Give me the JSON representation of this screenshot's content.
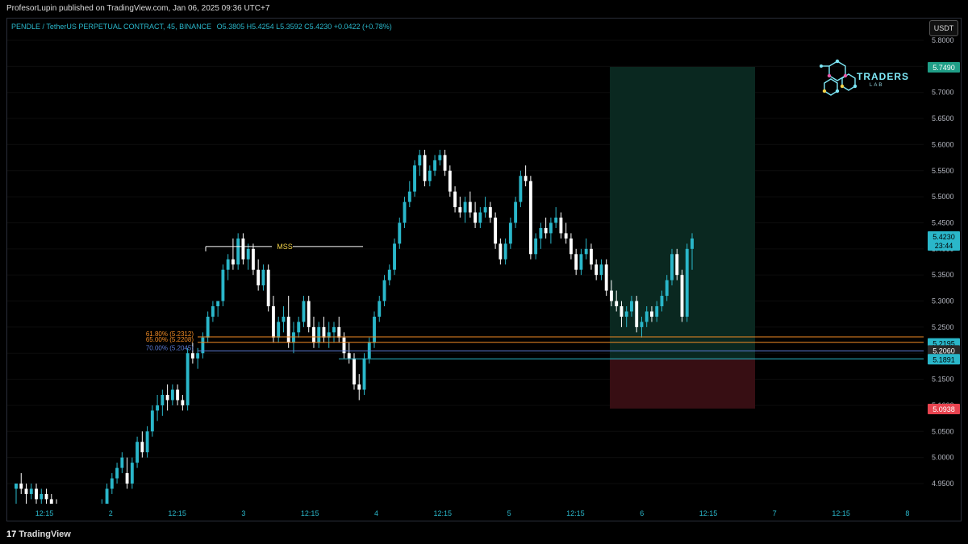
{
  "header": {
    "publish_line": "ProfesorLupin published on TradingView.com, Jan 06, 2025 09:36 UTC+7"
  },
  "symbol": {
    "title": "PENDLE / TetherUS PERPETUAL CONTRACT, 45, BINANCE",
    "ohlc": "O5.3805  H5.4254  L5.3592  C5.4230  +0.0422 (+0.78%)"
  },
  "currency_button": "USDT",
  "brand": {
    "name": "TRADERS",
    "sub": "LAB"
  },
  "footer": {
    "logo_text": "TradingView",
    "logo_mark": "17"
  },
  "colors": {
    "background": "#000000",
    "grid": "#0d0d0d",
    "candle_up": "#2ab7ca",
    "candle_down": "#ffffff",
    "target_zone": "#0b2a22",
    "stop_zone": "#3a0f14",
    "fib_618": "#f08a24",
    "fib_65": "#f08a24",
    "fib_70": "#5b7bd5",
    "entry_line": "#2ab7ca",
    "price_axis_text": "#b2b5be",
    "time_axis_text": "#2ab7ca"
  },
  "chart_data": {
    "type": "candlestick",
    "title": "PENDLE / TetherUS PERPETUAL CONTRACT, 45, BINANCE",
    "ylim": [
      4.905,
      5.822
    ],
    "y_ticks": [
      "5.8000",
      "5.7500",
      "5.7000",
      "5.6500",
      "5.6000",
      "5.5500",
      "5.5000",
      "5.4500",
      "5.4000",
      "5.3500",
      "5.3000",
      "5.2500",
      "5.2000",
      "5.1500",
      "5.1000",
      "5.0500",
      "5.0000",
      "4.9500"
    ],
    "x_ticks": [
      "12:15",
      "2",
      "12:15",
      "3",
      "12:15",
      "4",
      "12:15",
      "5",
      "12:15",
      "6",
      "12:15",
      "7",
      "12:15",
      "8"
    ],
    "candles": [
      [
        4.94,
        4.95,
        4.89,
        4.95
      ],
      [
        4.95,
        4.97,
        4.93,
        4.94
      ],
      [
        4.94,
        4.95,
        4.91,
        4.93
      ],
      [
        4.93,
        4.95,
        4.92,
        4.94
      ],
      [
        4.94,
        4.95,
        4.91,
        4.92
      ],
      [
        4.92,
        4.94,
        4.9,
        4.93
      ],
      [
        4.93,
        4.94,
        4.91,
        4.92
      ],
      [
        4.92,
        4.93,
        4.9,
        4.91
      ],
      [
        4.91,
        4.92,
        4.89,
        4.9
      ],
      [
        4.9,
        4.91,
        4.88,
        4.89
      ],
      [
        4.89,
        4.9,
        4.87,
        4.88
      ],
      [
        4.88,
        4.89,
        4.86,
        4.87
      ],
      [
        4.87,
        4.88,
        4.85,
        4.86
      ],
      [
        4.86,
        4.88,
        4.85,
        4.87
      ],
      [
        4.87,
        4.88,
        4.85,
        4.86
      ],
      [
        4.86,
        4.88,
        4.85,
        4.87
      ],
      [
        4.87,
        4.9,
        4.86,
        4.89
      ],
      [
        4.89,
        4.92,
        4.88,
        4.91
      ],
      [
        4.91,
        4.95,
        4.9,
        4.94
      ],
      [
        4.94,
        4.97,
        4.93,
        4.96
      ],
      [
        4.96,
        4.99,
        4.95,
        4.98
      ],
      [
        4.98,
        5.01,
        4.97,
        5.0
      ],
      [
        4.97,
        5.0,
        4.94,
        4.95
      ],
      [
        4.95,
        5.0,
        4.94,
        4.99
      ],
      [
        4.99,
        5.04,
        4.98,
        5.03
      ],
      [
        5.03,
        5.05,
        5.0,
        5.01
      ],
      [
        5.01,
        5.06,
        5.0,
        5.05
      ],
      [
        5.05,
        5.1,
        5.04,
        5.09
      ],
      [
        5.09,
        5.12,
        5.07,
        5.1
      ],
      [
        5.1,
        5.13,
        5.08,
        5.12
      ],
      [
        5.12,
        5.14,
        5.09,
        5.11
      ],
      [
        5.11,
        5.14,
        5.1,
        5.13
      ],
      [
        5.13,
        5.14,
        5.1,
        5.11
      ],
      [
        5.11,
        5.12,
        5.09,
        5.1
      ],
      [
        5.1,
        5.21,
        5.09,
        5.2
      ],
      [
        5.2,
        5.22,
        5.18,
        5.19
      ],
      [
        5.19,
        5.21,
        5.17,
        5.2
      ],
      [
        5.2,
        5.24,
        5.19,
        5.23
      ],
      [
        5.23,
        5.28,
        5.22,
        5.27
      ],
      [
        5.27,
        5.3,
        5.26,
        5.29
      ],
      [
        5.29,
        5.3,
        5.27,
        5.3
      ],
      [
        5.3,
        5.37,
        5.29,
        5.36
      ],
      [
        5.36,
        5.39,
        5.34,
        5.38
      ],
      [
        5.38,
        5.42,
        5.36,
        5.37
      ],
      [
        5.37,
        5.43,
        5.36,
        5.42
      ],
      [
        5.42,
        5.43,
        5.37,
        5.38
      ],
      [
        5.38,
        5.41,
        5.36,
        5.4
      ],
      [
        5.4,
        5.41,
        5.35,
        5.36
      ],
      [
        5.36,
        5.38,
        5.32,
        5.33
      ],
      [
        5.33,
        5.37,
        5.32,
        5.36
      ],
      [
        5.36,
        5.37,
        5.28,
        5.29
      ],
      [
        5.29,
        5.31,
        5.22,
        5.23
      ],
      [
        5.23,
        5.27,
        5.22,
        5.26
      ],
      [
        5.26,
        5.29,
        5.24,
        5.27
      ],
      [
        5.27,
        5.31,
        5.21,
        5.22
      ],
      [
        5.22,
        5.26,
        5.2,
        5.24
      ],
      [
        5.24,
        5.27,
        5.23,
        5.26
      ],
      [
        5.26,
        5.31,
        5.25,
        5.3
      ],
      [
        5.3,
        5.31,
        5.24,
        5.25
      ],
      [
        5.25,
        5.27,
        5.21,
        5.22
      ],
      [
        5.22,
        5.26,
        5.21,
        5.25
      ],
      [
        5.25,
        5.27,
        5.22,
        5.23
      ],
      [
        5.23,
        5.26,
        5.21,
        5.24
      ],
      [
        5.24,
        5.26,
        5.22,
        5.25
      ],
      [
        5.25,
        5.27,
        5.22,
        5.23
      ],
      [
        5.23,
        5.24,
        5.19,
        5.2
      ],
      [
        5.2,
        5.22,
        5.18,
        5.19
      ],
      [
        5.19,
        5.2,
        5.13,
        5.14
      ],
      [
        5.14,
        5.16,
        5.11,
        5.13
      ],
      [
        5.13,
        5.2,
        5.12,
        5.19
      ],
      [
        5.19,
        5.23,
        5.18,
        5.22
      ],
      [
        5.22,
        5.28,
        5.21,
        5.27
      ],
      [
        5.27,
        5.31,
        5.26,
        5.3
      ],
      [
        5.3,
        5.35,
        5.29,
        5.34
      ],
      [
        5.34,
        5.37,
        5.33,
        5.36
      ],
      [
        5.36,
        5.42,
        5.35,
        5.41
      ],
      [
        5.41,
        5.46,
        5.4,
        5.45
      ],
      [
        5.45,
        5.5,
        5.44,
        5.49
      ],
      [
        5.49,
        5.53,
        5.48,
        5.51
      ],
      [
        5.51,
        5.57,
        5.5,
        5.56
      ],
      [
        5.56,
        5.59,
        5.54,
        5.58
      ],
      [
        5.58,
        5.59,
        5.52,
        5.53
      ],
      [
        5.53,
        5.56,
        5.52,
        5.55
      ],
      [
        5.55,
        5.58,
        5.54,
        5.57
      ],
      [
        5.57,
        5.59,
        5.56,
        5.58
      ],
      [
        5.58,
        5.59,
        5.54,
        5.55
      ],
      [
        5.55,
        5.56,
        5.5,
        5.51
      ],
      [
        5.51,
        5.52,
        5.47,
        5.48
      ],
      [
        5.48,
        5.5,
        5.46,
        5.47
      ],
      [
        5.47,
        5.5,
        5.45,
        5.49
      ],
      [
        5.49,
        5.51,
        5.46,
        5.47
      ],
      [
        5.47,
        5.49,
        5.44,
        5.45
      ],
      [
        5.45,
        5.48,
        5.44,
        5.47
      ],
      [
        5.47,
        5.5,
        5.46,
        5.48
      ],
      [
        5.48,
        5.49,
        5.45,
        5.46
      ],
      [
        5.46,
        5.47,
        5.4,
        5.41
      ],
      [
        5.41,
        5.42,
        5.37,
        5.38
      ],
      [
        5.38,
        5.42,
        5.37,
        5.41
      ],
      [
        5.41,
        5.46,
        5.4,
        5.45
      ],
      [
        5.45,
        5.5,
        5.44,
        5.49
      ],
      [
        5.49,
        5.55,
        5.48,
        5.54
      ],
      [
        5.54,
        5.56,
        5.52,
        5.53
      ],
      [
        5.53,
        5.54,
        5.38,
        5.39
      ],
      [
        5.39,
        5.43,
        5.38,
        5.42
      ],
      [
        5.42,
        5.45,
        5.4,
        5.44
      ],
      [
        5.44,
        5.46,
        5.42,
        5.43
      ],
      [
        5.43,
        5.46,
        5.41,
        5.45
      ],
      [
        5.45,
        5.48,
        5.44,
        5.46
      ],
      [
        5.46,
        5.47,
        5.42,
        5.43
      ],
      [
        5.43,
        5.45,
        5.41,
        5.42
      ],
      [
        5.42,
        5.43,
        5.38,
        5.39
      ],
      [
        5.39,
        5.4,
        5.35,
        5.36
      ],
      [
        5.36,
        5.4,
        5.35,
        5.39
      ],
      [
        5.39,
        5.42,
        5.38,
        5.4
      ],
      [
        5.4,
        5.41,
        5.36,
        5.37
      ],
      [
        5.37,
        5.38,
        5.34,
        5.35
      ],
      [
        5.35,
        5.38,
        5.34,
        5.37
      ],
      [
        5.37,
        5.38,
        5.31,
        5.32
      ],
      [
        5.32,
        5.34,
        5.29,
        5.3
      ],
      [
        5.3,
        5.32,
        5.28,
        5.29
      ],
      [
        5.29,
        5.3,
        5.25,
        5.27
      ],
      [
        5.27,
        5.29,
        5.25,
        5.28
      ],
      [
        5.28,
        5.31,
        5.27,
        5.3
      ],
      [
        5.3,
        5.31,
        5.24,
        5.25
      ],
      [
        5.25,
        5.27,
        5.23,
        5.26
      ],
      [
        5.26,
        5.29,
        5.25,
        5.28
      ],
      [
        5.28,
        5.29,
        5.26,
        5.27
      ],
      [
        5.27,
        5.3,
        5.26,
        5.29
      ],
      [
        5.29,
        5.32,
        5.28,
        5.31
      ],
      [
        5.31,
        5.35,
        5.3,
        5.34
      ],
      [
        5.34,
        5.4,
        5.33,
        5.39
      ],
      [
        5.39,
        5.4,
        5.34,
        5.35
      ],
      [
        5.35,
        5.36,
        5.26,
        5.27
      ],
      [
        5.27,
        5.41,
        5.26,
        5.4
      ],
      [
        5.4,
        5.43,
        5.36,
        5.42
      ]
    ]
  },
  "annotations": {
    "mss_label": "MSS",
    "fib_618_label": "61.80% (5.2312)",
    "fib_65_label": "65.00% (5.2208)",
    "fib_70_label": "70.00% (5.2045)",
    "fib_618_value": 5.2312,
    "fib_65_value": 5.2208,
    "fib_70_value": 5.2045,
    "mss_value": 5.4,
    "entry_value": 5.1891,
    "target_value": 5.749,
    "stop_value": 5.0938
  },
  "price_labels": {
    "target": "5.7490",
    "current": "5.4230",
    "countdown": "23:44",
    "fib_a": "5.2195",
    "fib_b": "5.2060",
    "entry": "5.1891",
    "stop": "5.0938",
    "current_value": 5.423,
    "fib_a_value": 5.2195,
    "fib_b_value": 5.206
  }
}
